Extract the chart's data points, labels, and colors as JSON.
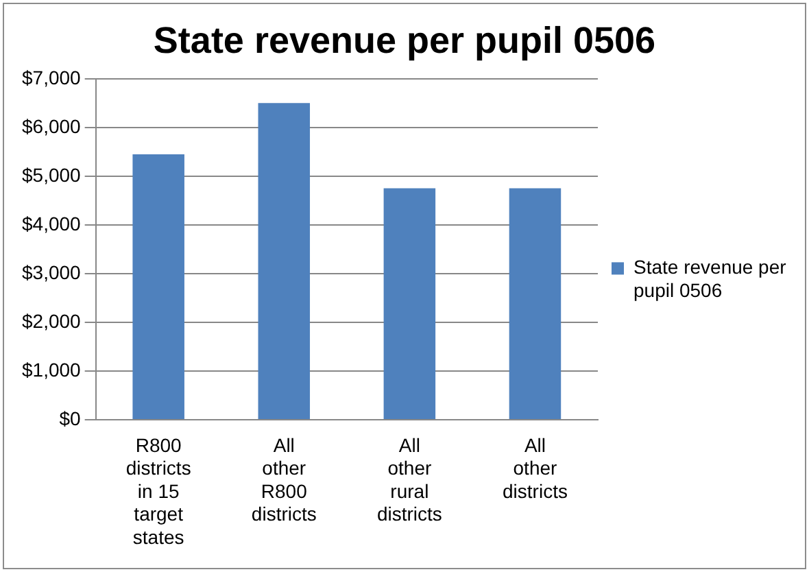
{
  "chart_data": {
    "type": "bar",
    "title": "State revenue per pupil 0506",
    "categories": [
      "R800 districts in 15 target states",
      "All other R800 districts",
      "All other rural districts",
      "All other districts"
    ],
    "series": [
      {
        "name": "State revenue per pupil 0506",
        "color": "#4f81bd",
        "values": [
          5450,
          6500,
          4750,
          4750
        ]
      }
    ],
    "ylim": [
      0,
      7000
    ],
    "yticks": [
      {
        "value": 0,
        "label": "$0"
      },
      {
        "value": 1000,
        "label": "$1,000"
      },
      {
        "value": 2000,
        "label": "$2,000"
      },
      {
        "value": 3000,
        "label": "$3,000"
      },
      {
        "value": 4000,
        "label": "$4,000"
      },
      {
        "value": 5000,
        "label": "$5,000"
      },
      {
        "value": 6000,
        "label": "$6,000"
      },
      {
        "value": 7000,
        "label": "$7,000"
      }
    ],
    "grid": "y",
    "legend": "right"
  }
}
